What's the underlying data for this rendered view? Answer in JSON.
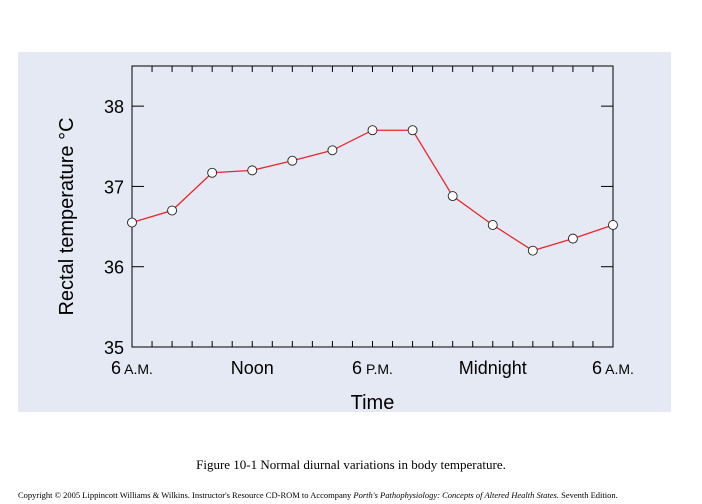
{
  "chart_data": {
    "type": "line",
    "title": "",
    "xlabel": "Time",
    "ylabel": "Rectal temperature °C",
    "ylim": [
      35,
      38.5
    ],
    "xlim": [
      0,
      24
    ],
    "yticks": [
      35,
      36,
      37,
      38
    ],
    "xtick_labels": [
      {
        "x": 0,
        "main": "6",
        "suffix": "A.M."
      },
      {
        "x": 6,
        "main": "Noon",
        "suffix": ""
      },
      {
        "x": 12,
        "main": "6",
        "suffix": "P.M."
      },
      {
        "x": 18,
        "main": "Midnight",
        "suffix": ""
      },
      {
        "x": 24,
        "main": "6",
        "suffix": "A.M."
      }
    ],
    "grid": false,
    "series": [
      {
        "line_color": "#e8262c",
        "marker": "open-circle",
        "x": [
          0,
          2,
          4,
          6,
          8,
          10,
          12,
          14,
          16,
          18,
          20,
          22,
          24
        ],
        "y": [
          36.55,
          36.7,
          37.17,
          37.2,
          37.32,
          37.45,
          37.7,
          37.7,
          36.88,
          36.52,
          36.2,
          36.35,
          36.52
        ]
      }
    ]
  },
  "caption": "Figure 10-1 Normal diurnal variations in body temperature.",
  "copyright": {
    "prefix": "Copyright © 2005 Lippincott Williams & Wilkins.  Instructor's Resource CD-ROM to Accompany ",
    "book_title": "Porth's Pathophysiology: Concepts of Altered Health States.",
    "suffix": " Seventh Edition."
  }
}
